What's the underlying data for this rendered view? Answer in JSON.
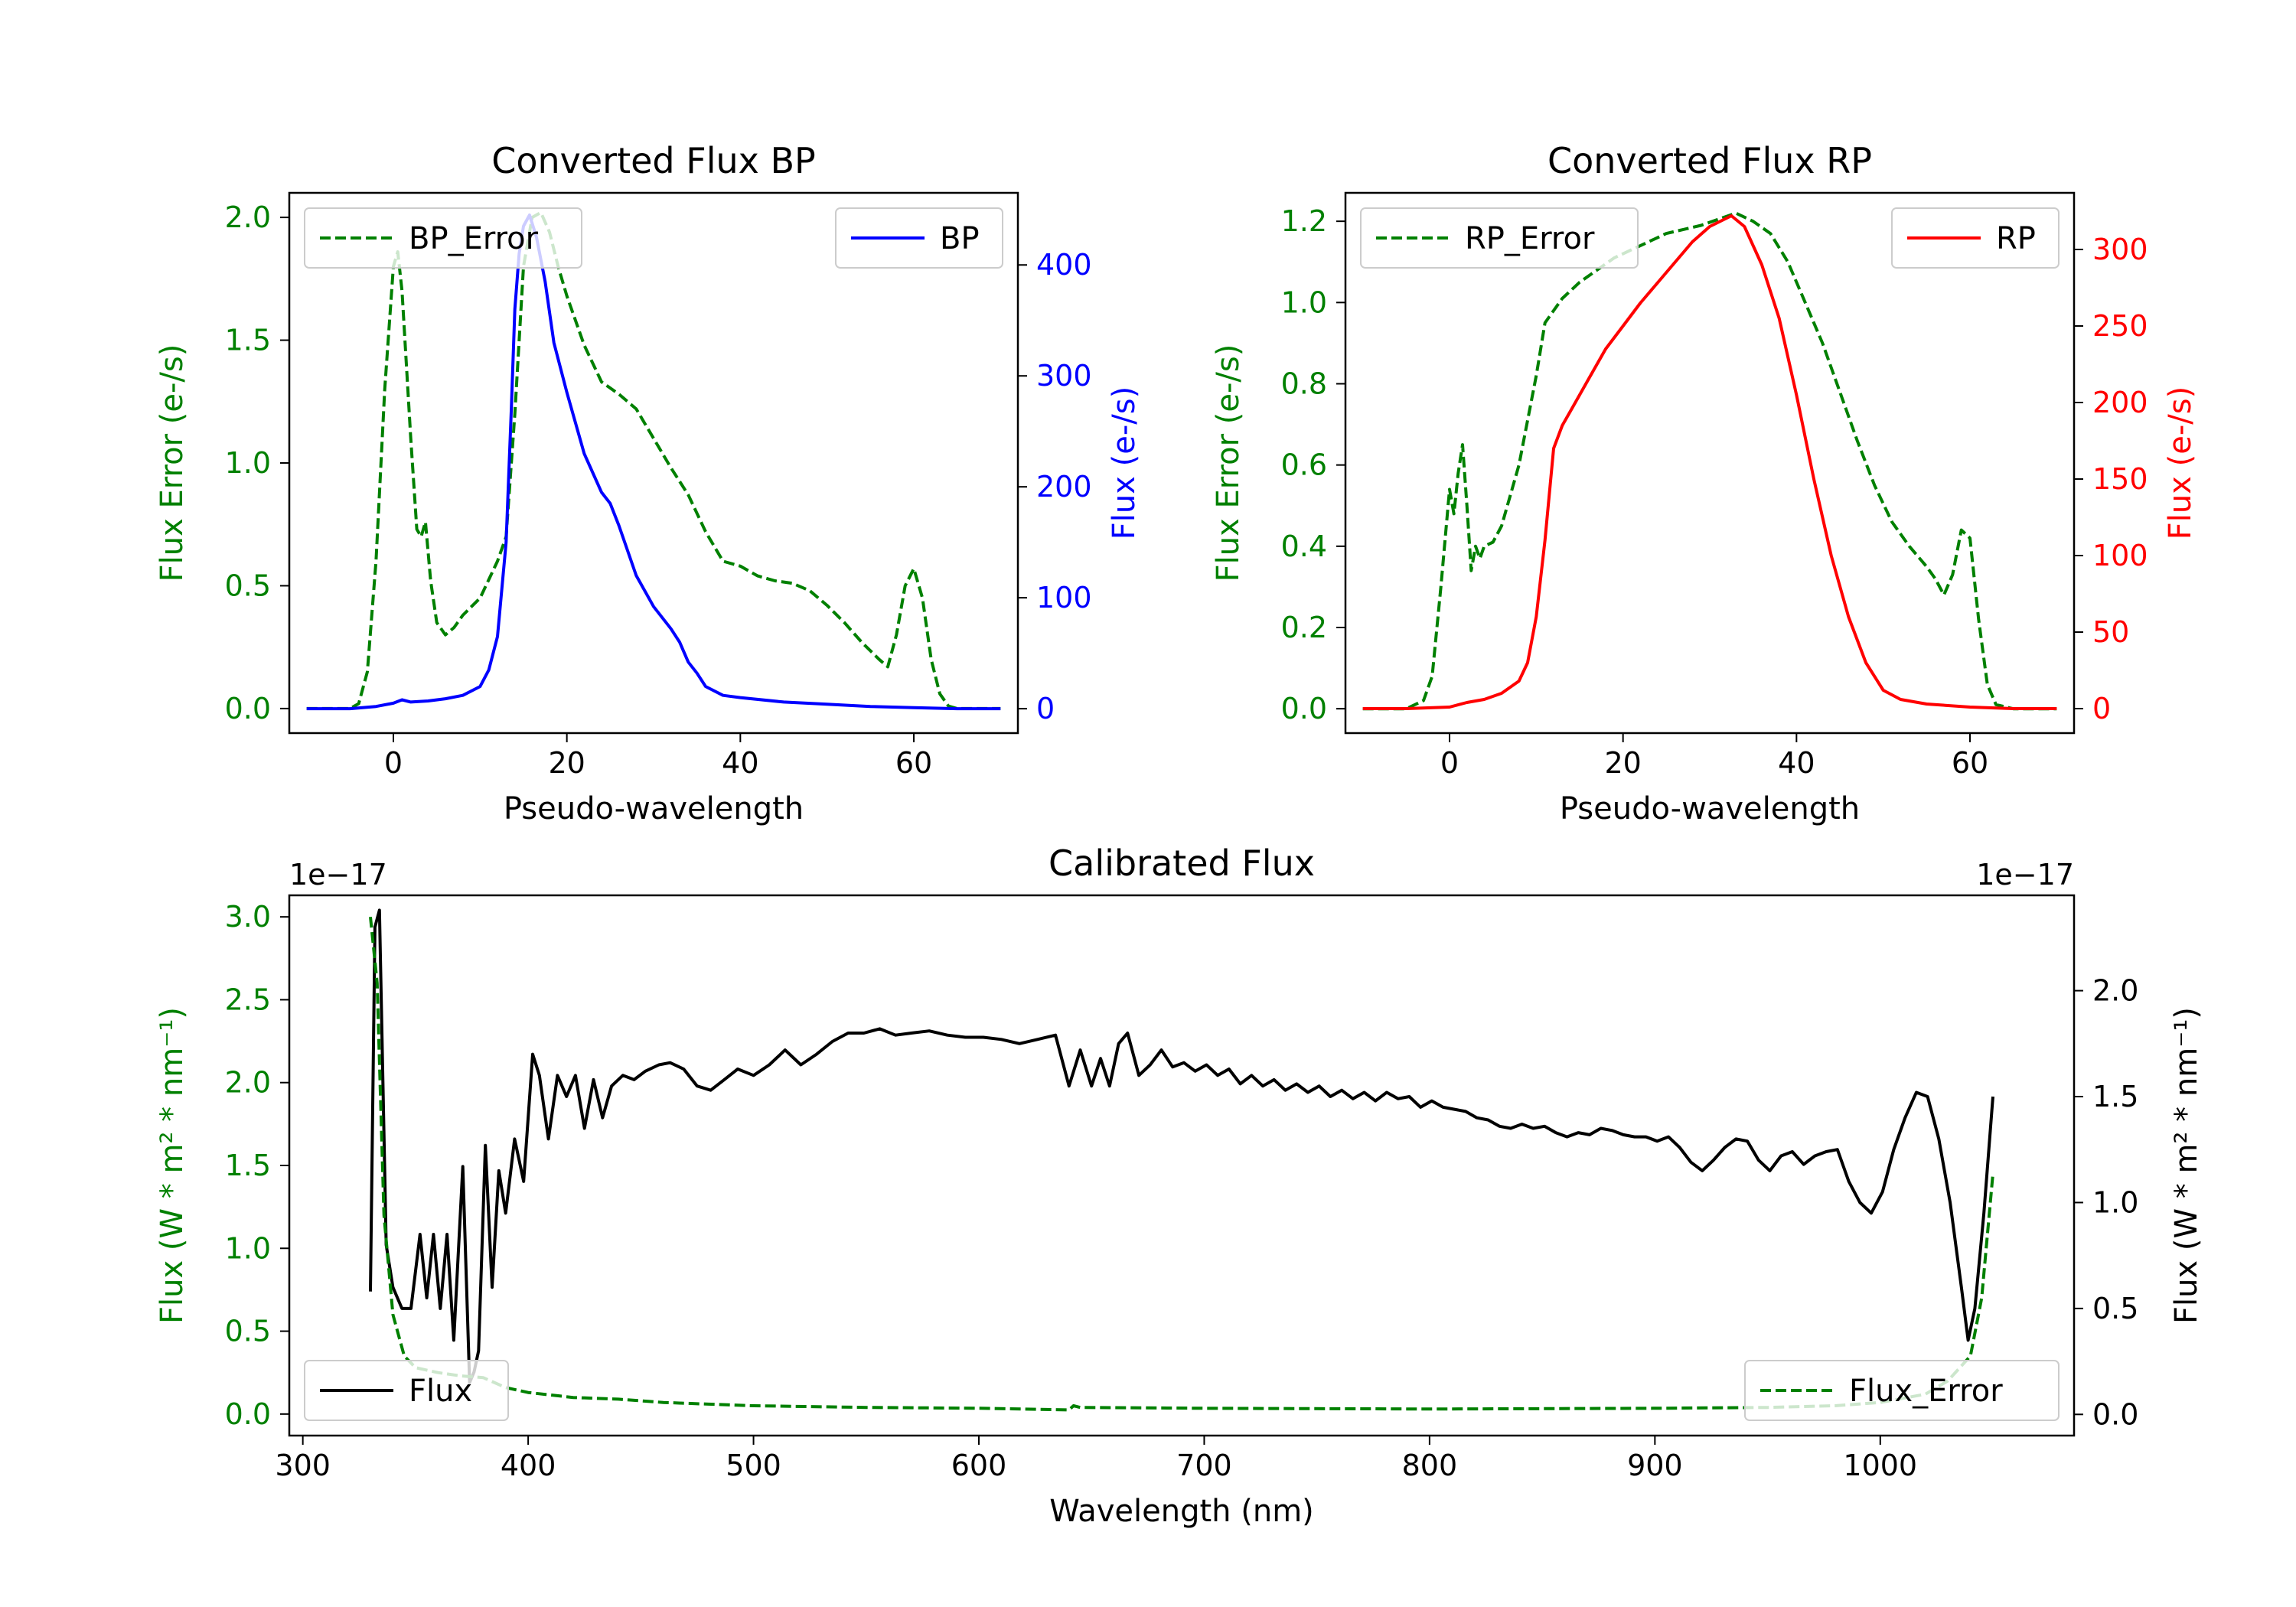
{
  "chart_data": [
    {
      "type": "line",
      "title": "Converted Flux BP",
      "xlabel": "Pseudo-wavelength",
      "xlim": [
        -12,
        72
      ],
      "xticks": [
        0,
        20,
        40,
        60
      ],
      "y_left": {
        "label": "Flux Error (e-/s)",
        "lim": [
          -0.1,
          2.1
        ],
        "ticks": [
          0.0,
          0.5,
          1.0,
          1.5,
          2.0
        ],
        "color": "#008000"
      },
      "y_right": {
        "label": "Flux (e-/s)",
        "lim": [
          -22,
          465
        ],
        "ticks": [
          0,
          100,
          200,
          300,
          400
        ],
        "color": "#0000ff"
      },
      "series": [
        {
          "name": "BP_Error",
          "axis": "left",
          "style": "dashed",
          "color": "#008000",
          "legend": "upper left",
          "x": [
            -10,
            -5,
            -4,
            -3,
            -2,
            -1,
            0,
            0.5,
            1,
            2,
            2.7,
            3.2,
            3.7,
            4.3,
            5,
            6,
            7,
            8,
            10,
            12,
            13,
            14,
            15,
            16,
            17,
            18,
            19,
            20,
            22,
            24,
            26,
            28,
            30,
            32,
            34,
            36,
            38,
            40,
            42,
            44,
            46,
            48,
            50,
            52,
            54,
            56,
            57,
            58,
            59,
            60,
            61,
            62,
            63,
            64,
            65,
            67,
            70
          ],
          "values": [
            0,
            0,
            0.02,
            0.15,
            0.6,
            1.3,
            1.8,
            1.86,
            1.7,
            1.1,
            0.73,
            0.7,
            0.76,
            0.52,
            0.35,
            0.3,
            0.33,
            0.38,
            0.45,
            0.6,
            0.7,
            1.2,
            1.8,
            2.0,
            2.02,
            1.94,
            1.8,
            1.68,
            1.48,
            1.33,
            1.28,
            1.22,
            1.1,
            0.98,
            0.87,
            0.72,
            0.6,
            0.58,
            0.54,
            0.52,
            0.51,
            0.48,
            0.42,
            0.35,
            0.27,
            0.2,
            0.17,
            0.3,
            0.5,
            0.57,
            0.45,
            0.2,
            0.06,
            0.01,
            0,
            0,
            0
          ]
        },
        {
          "name": "BP",
          "axis": "right",
          "style": "solid",
          "color": "#0000ff",
          "legend": "upper right",
          "x": [
            -10,
            -5,
            -2,
            0,
            1,
            2,
            4,
            6,
            8,
            10,
            11,
            12,
            13,
            13.6,
            14,
            14.5,
            15,
            15.7,
            16.5,
            17.5,
            18.5,
            20,
            22,
            24,
            25,
            26,
            28,
            30,
            32,
            33,
            34,
            35,
            36,
            38,
            40,
            45,
            50,
            55,
            60,
            65,
            70
          ],
          "values": [
            0,
            0,
            2,
            5,
            8,
            6,
            7,
            9,
            12,
            20,
            35,
            65,
            150,
            270,
            360,
            410,
            435,
            445,
            425,
            385,
            330,
            285,
            230,
            195,
            185,
            165,
            120,
            92,
            72,
            60,
            42,
            32,
            20,
            12,
            10,
            6,
            4,
            2,
            1,
            0,
            0
          ]
        }
      ]
    },
    {
      "type": "line",
      "title": "Converted Flux RP",
      "xlabel": "Pseudo-wavelength",
      "xlim": [
        -12,
        72
      ],
      "xticks": [
        0,
        20,
        40,
        60
      ],
      "y_left": {
        "label": "Flux Error (e-/s)",
        "lim": [
          -0.06,
          1.27
        ],
        "ticks": [
          0.0,
          0.2,
          0.4,
          0.6,
          0.8,
          1.0,
          1.2
        ],
        "color": "#008000"
      },
      "y_right": {
        "label": "Flux (e-/s)",
        "lim": [
          -16,
          337
        ],
        "ticks": [
          0,
          50,
          100,
          150,
          200,
          250,
          300
        ],
        "color": "#ff0000"
      },
      "series": [
        {
          "name": "RP_Error",
          "axis": "left",
          "style": "dashed",
          "color": "#008000",
          "legend": "upper left",
          "x": [
            -10,
            -5,
            -3,
            -2,
            -1,
            0,
            0.5,
            1,
            1.5,
            2,
            2.5,
            3,
            3.5,
            4,
            5,
            6,
            8,
            10,
            11,
            12,
            13,
            15,
            17,
            19,
            21,
            23,
            25,
            27,
            29,
            31,
            33,
            35,
            37,
            39,
            41,
            43,
            45,
            47,
            49,
            51,
            53,
            55,
            56,
            57,
            58,
            59,
            60,
            61,
            62,
            63,
            65,
            70
          ],
          "values": [
            0,
            0,
            0.02,
            0.08,
            0.3,
            0.54,
            0.48,
            0.58,
            0.65,
            0.5,
            0.34,
            0.4,
            0.37,
            0.4,
            0.41,
            0.45,
            0.6,
            0.82,
            0.95,
            0.98,
            1.01,
            1.05,
            1.08,
            1.11,
            1.13,
            1.15,
            1.17,
            1.18,
            1.19,
            1.205,
            1.22,
            1.2,
            1.17,
            1.1,
            1.0,
            0.9,
            0.78,
            0.66,
            0.55,
            0.46,
            0.4,
            0.35,
            0.32,
            0.28,
            0.33,
            0.44,
            0.42,
            0.22,
            0.06,
            0.01,
            0,
            0
          ]
        },
        {
          "name": "RP",
          "axis": "right",
          "style": "solid",
          "color": "#ff0000",
          "legend": "upper right",
          "x": [
            -10,
            -5,
            0,
            2,
            4,
            6,
            8,
            9,
            10,
            11,
            12,
            13,
            14,
            16,
            18,
            20,
            22,
            25,
            28,
            30,
            32.5,
            34,
            36,
            38,
            40,
            42,
            44,
            46,
            48,
            50,
            52,
            55,
            60,
            65,
            70
          ],
          "values": [
            0,
            0,
            1,
            4,
            6,
            10,
            18,
            30,
            60,
            110,
            170,
            185,
            195,
            215,
            235,
            250,
            265,
            285,
            305,
            315,
            322,
            315,
            290,
            255,
            205,
            150,
            100,
            60,
            30,
            12,
            6,
            3,
            1,
            0,
            0
          ]
        }
      ]
    },
    {
      "type": "line",
      "title": "Calibrated Flux",
      "xlabel": "Wavelength (nm)",
      "xlim": [
        294,
        1086
      ],
      "xticks": [
        300,
        400,
        500,
        600,
        700,
        800,
        900,
        1000
      ],
      "y_left": {
        "label": "Flux (W * m² * nm⁻¹)",
        "lim": [
          -0.13,
          3.13
        ],
        "ticks": [
          0.0,
          0.5,
          1.0,
          1.5,
          2.0,
          2.5,
          3.0
        ],
        "tick_labels": [
          "0.0",
          "0.5",
          "1.0",
          "1.5",
          "2.0",
          "2.5",
          "3.0"
        ],
        "offset": "1e−17",
        "color": "#008000"
      },
      "y_right": {
        "label": "Flux (W * m² * nm⁻¹)",
        "lim": [
          -0.1,
          2.45
        ],
        "ticks": [
          0.0,
          0.5,
          1.0,
          1.5,
          2.0
        ],
        "tick_labels": [
          "0.0",
          "0.5",
          "1.0",
          "1.5",
          "2.0"
        ],
        "offset": "1e−17",
        "color": "#000000"
      },
      "series": [
        {
          "name": "Flux",
          "axis": "right",
          "style": "solid",
          "color": "#000000",
          "legend": "lower left",
          "x": [
            330,
            332,
            334,
            337,
            340,
            344,
            348,
            352,
            355,
            358,
            361,
            364,
            367,
            371,
            374,
            376,
            378,
            381,
            384,
            387,
            390,
            394,
            398,
            402,
            405,
            409,
            413,
            417,
            421,
            425,
            429,
            433,
            437,
            442,
            447,
            452,
            458,
            463,
            469,
            475,
            481,
            487,
            493,
            500,
            507,
            514,
            521,
            528,
            535,
            542,
            549,
            556,
            563,
            570,
            578,
            586,
            594,
            602,
            610,
            618,
            626,
            634,
            640,
            645,
            650,
            654,
            658,
            662,
            666,
            671,
            676,
            681,
            686,
            691,
            696,
            701,
            706,
            711,
            716,
            721,
            726,
            731,
            736,
            741,
            746,
            751,
            756,
            761,
            766,
            771,
            776,
            781,
            786,
            791,
            796,
            801,
            806,
            811,
            816,
            821,
            826,
            831,
            836,
            841,
            846,
            851,
            856,
            861,
            866,
            871,
            876,
            881,
            886,
            891,
            896,
            901,
            906,
            911,
            916,
            921,
            926,
            931,
            936,
            941,
            946,
            951,
            956,
            961,
            966,
            971,
            976,
            981,
            986,
            991,
            996,
            1001,
            1006,
            1011,
            1016,
            1021,
            1026,
            1031,
            1036,
            1039,
            1042,
            1046,
            1050
          ],
          "values": [
            0.58,
            2.3,
            2.38,
            0.8,
            0.6,
            0.5,
            0.5,
            0.85,
            0.55,
            0.85,
            0.5,
            0.85,
            0.35,
            1.17,
            0.15,
            0.2,
            0.3,
            1.27,
            0.6,
            1.15,
            0.95,
            1.3,
            1.1,
            1.7,
            1.6,
            1.3,
            1.6,
            1.5,
            1.6,
            1.35,
            1.58,
            1.4,
            1.55,
            1.6,
            1.58,
            1.62,
            1.65,
            1.66,
            1.63,
            1.55,
            1.53,
            1.58,
            1.63,
            1.6,
            1.65,
            1.72,
            1.65,
            1.7,
            1.76,
            1.8,
            1.8,
            1.82,
            1.79,
            1.8,
            1.81,
            1.79,
            1.78,
            1.78,
            1.77,
            1.75,
            1.77,
            1.79,
            1.55,
            1.72,
            1.55,
            1.68,
            1.55,
            1.75,
            1.8,
            1.6,
            1.65,
            1.72,
            1.64,
            1.66,
            1.62,
            1.65,
            1.6,
            1.63,
            1.56,
            1.6,
            1.55,
            1.58,
            1.53,
            1.56,
            1.52,
            1.55,
            1.5,
            1.53,
            1.49,
            1.52,
            1.48,
            1.52,
            1.49,
            1.5,
            1.45,
            1.48,
            1.45,
            1.44,
            1.43,
            1.4,
            1.39,
            1.36,
            1.35,
            1.37,
            1.35,
            1.36,
            1.33,
            1.31,
            1.33,
            1.32,
            1.35,
            1.34,
            1.32,
            1.31,
            1.31,
            1.29,
            1.31,
            1.26,
            1.19,
            1.15,
            1.2,
            1.26,
            1.3,
            1.29,
            1.2,
            1.15,
            1.22,
            1.24,
            1.18,
            1.22,
            1.24,
            1.25,
            1.1,
            1.0,
            0.95,
            1.05,
            1.25,
            1.4,
            1.52,
            1.5,
            1.3,
            1.0,
            0.6,
            0.35,
            0.5,
            0.95,
            1.5
          ]
        },
        {
          "name": "Flux_Error",
          "axis": "left",
          "style": "dashed",
          "color": "#008000",
          "legend": "lower right",
          "x": [
            330,
            333,
            336,
            340,
            345,
            350,
            360,
            370,
            380,
            390,
            400,
            420,
            440,
            460,
            480,
            500,
            550,
            600,
            640,
            642,
            645,
            700,
            800,
            900,
            950,
            980,
            1000,
            1020,
            1030,
            1040,
            1045,
            1050
          ],
          "values": [
            3.0,
            2.6,
            1.2,
            0.6,
            0.35,
            0.28,
            0.25,
            0.23,
            0.22,
            0.16,
            0.13,
            0.1,
            0.09,
            0.07,
            0.06,
            0.05,
            0.04,
            0.035,
            0.025,
            0.05,
            0.04,
            0.035,
            0.03,
            0.035,
            0.04,
            0.05,
            0.07,
            0.12,
            0.2,
            0.35,
            0.7,
            1.45
          ]
        }
      ]
    }
  ]
}
